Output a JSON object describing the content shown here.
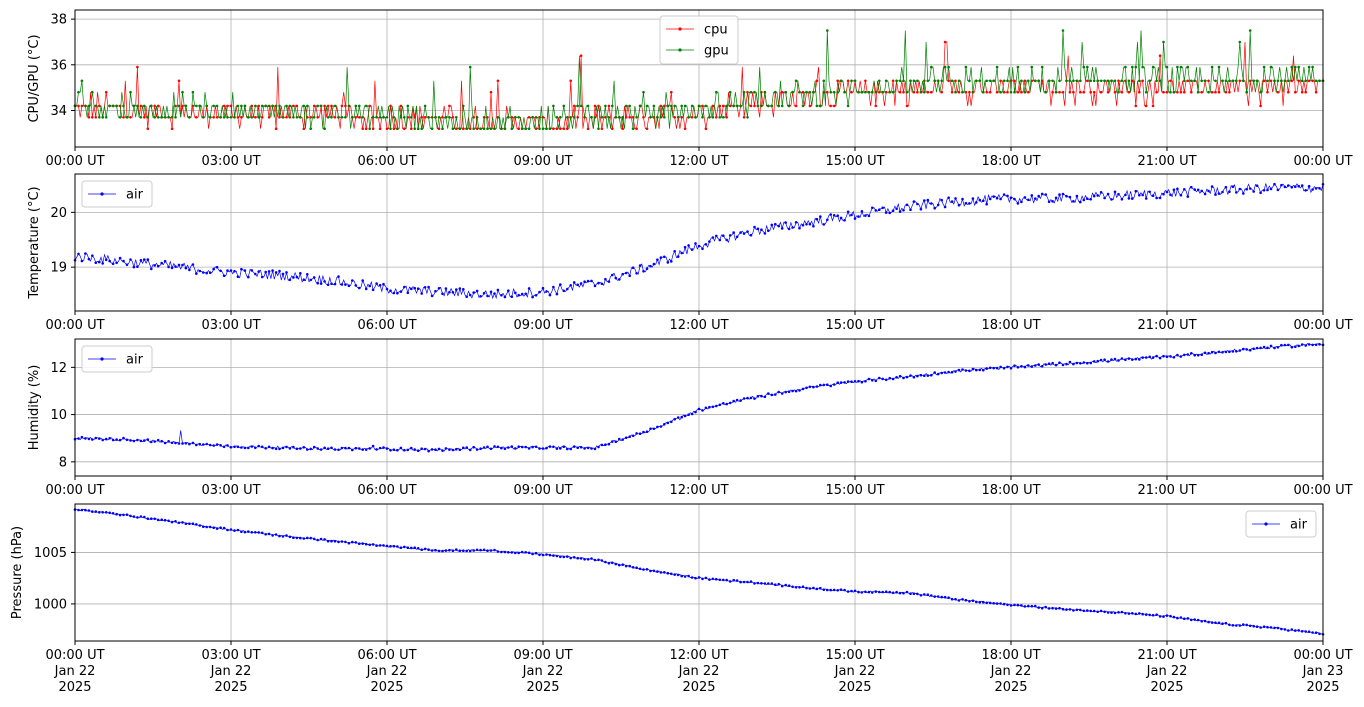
{
  "chart_data": [
    {
      "type": "line",
      "ylabel": "CPU/GPU (°C)",
      "ylim": [
        32.4,
        38.4
      ],
      "yticks": [
        34,
        36,
        38
      ],
      "xlim": [
        "2025-01-22 00:00",
        "2025-01-23 00:00"
      ],
      "xticklabels": [
        "00:00 UT",
        "03:00 UT",
        "06:00 UT",
        "09:00 UT",
        "12:00 UT",
        "15:00 UT",
        "18:00 UT",
        "21:00 UT",
        "00:00 UT"
      ],
      "grid": true,
      "legend": "top-center",
      "series": [
        {
          "name": "cpu",
          "color": "#ff0000",
          "x_hours": [
            0,
            1,
            2,
            3,
            4,
            5,
            6,
            7,
            8,
            9,
            10,
            11,
            12,
            13,
            14,
            15,
            16,
            17,
            18,
            19,
            20,
            21,
            22,
            23,
            24
          ],
          "values": [
            34.2,
            34.0,
            33.9,
            33.9,
            33.9,
            33.8,
            33.7,
            33.6,
            33.5,
            33.5,
            33.6,
            33.7,
            33.9,
            34.3,
            34.6,
            34.8,
            34.9,
            35.0,
            35.0,
            35.0,
            35.0,
            35.0,
            35.0,
            35.0,
            35.0
          ]
        },
        {
          "name": "gpu",
          "color": "#008000",
          "x_hours": [
            0,
            1,
            2,
            3,
            4,
            5,
            6,
            7,
            8,
            9,
            10,
            11,
            12,
            13,
            14,
            15,
            16,
            17,
            18,
            19,
            20,
            21,
            22,
            23,
            24
          ],
          "values": [
            34.3,
            34.1,
            34.0,
            34.0,
            34.0,
            33.9,
            33.8,
            33.6,
            33.5,
            33.6,
            33.7,
            33.8,
            34.0,
            34.4,
            34.7,
            34.9,
            35.1,
            35.2,
            35.2,
            35.2,
            35.3,
            35.3,
            35.3,
            35.4,
            35.3
          ]
        }
      ]
    },
    {
      "type": "line",
      "ylabel": "Temperature (°C)",
      "ylim": [
        18.2,
        20.7
      ],
      "yticks": [
        19,
        20
      ],
      "xlim": [
        "2025-01-22 00:00",
        "2025-01-23 00:00"
      ],
      "xticklabels": [
        "00:00 UT",
        "03:00 UT",
        "06:00 UT",
        "09:00 UT",
        "12:00 UT",
        "15:00 UT",
        "18:00 UT",
        "21:00 UT",
        "00:00 UT"
      ],
      "grid": true,
      "legend": "top-left",
      "series": [
        {
          "name": "air",
          "color": "#0000ff",
          "x_hours": [
            0,
            1,
            2,
            3,
            4,
            5,
            6,
            7,
            8,
            9,
            10,
            11,
            12,
            13,
            14,
            15,
            16,
            17,
            18,
            19,
            20,
            21,
            22,
            23,
            24
          ],
          "values": [
            19.2,
            19.1,
            19.0,
            18.9,
            18.85,
            18.75,
            18.6,
            18.55,
            18.5,
            18.55,
            18.7,
            19.0,
            19.4,
            19.65,
            19.8,
            19.95,
            20.1,
            20.2,
            20.25,
            20.25,
            20.3,
            20.35,
            20.4,
            20.45,
            20.45
          ]
        }
      ]
    },
    {
      "type": "line",
      "ylabel": "Humidity (%)",
      "ylim": [
        7.4,
        13.2
      ],
      "yticks": [
        8,
        10,
        12
      ],
      "xlim": [
        "2025-01-22 00:00",
        "2025-01-23 00:00"
      ],
      "xticklabels": [
        "00:00 UT",
        "03:00 UT",
        "06:00 UT",
        "09:00 UT",
        "12:00 UT",
        "15:00 UT",
        "18:00 UT",
        "21:00 UT",
        "00:00 UT"
      ],
      "grid": true,
      "legend": "top-left",
      "series": [
        {
          "name": "air",
          "color": "#0000ff",
          "x_hours": [
            0,
            1,
            2,
            3,
            4,
            5,
            6,
            7,
            8,
            9,
            10,
            11,
            12,
            13,
            14,
            15,
            16,
            17,
            18,
            19,
            20,
            21,
            22,
            23,
            24
          ],
          "values": [
            9.0,
            8.95,
            8.8,
            8.65,
            8.6,
            8.55,
            8.55,
            8.5,
            8.6,
            8.6,
            8.6,
            9.3,
            10.2,
            10.7,
            11.1,
            11.4,
            11.6,
            11.85,
            12.0,
            12.15,
            12.3,
            12.45,
            12.65,
            12.85,
            13.0
          ]
        }
      ]
    },
    {
      "type": "line",
      "ylabel": "Pressure (hPa)",
      "ylim": [
        996.4,
        1009.7
      ],
      "yticks": [
        1000,
        1005
      ],
      "xlim": [
        "2025-01-22 00:00",
        "2025-01-23 00:00"
      ],
      "xticklabels": [
        "00:00 UT\nJan 22\n2025",
        "03:00 UT\nJan 22\n2025",
        "06:00 UT\nJan 22\n2025",
        "09:00 UT\nJan 22\n2025",
        "12:00 UT\nJan 22\n2025",
        "15:00 UT\nJan 22\n2025",
        "18:00 UT\nJan 22\n2025",
        "21:00 UT\nJan 22\n2025",
        "00:00 UT\nJan 23\n2025"
      ],
      "grid": true,
      "legend": "top-right",
      "series": [
        {
          "name": "air",
          "color": "#0000ff",
          "x_hours": [
            0,
            1,
            2,
            3,
            4,
            5,
            6,
            7,
            8,
            9,
            10,
            11,
            12,
            13,
            14,
            15,
            16,
            17,
            18,
            19,
            20,
            21,
            22,
            23,
            24
          ],
          "values": [
            1009.2,
            1008.6,
            1007.9,
            1007.2,
            1006.6,
            1006.1,
            1005.6,
            1005.2,
            1005.2,
            1004.8,
            1004.3,
            1003.3,
            1002.5,
            1002.1,
            1001.6,
            1001.2,
            1001.1,
            1000.4,
            999.9,
            999.5,
            999.2,
            998.8,
            998.1,
            997.7,
            997.1
          ]
        }
      ]
    }
  ]
}
